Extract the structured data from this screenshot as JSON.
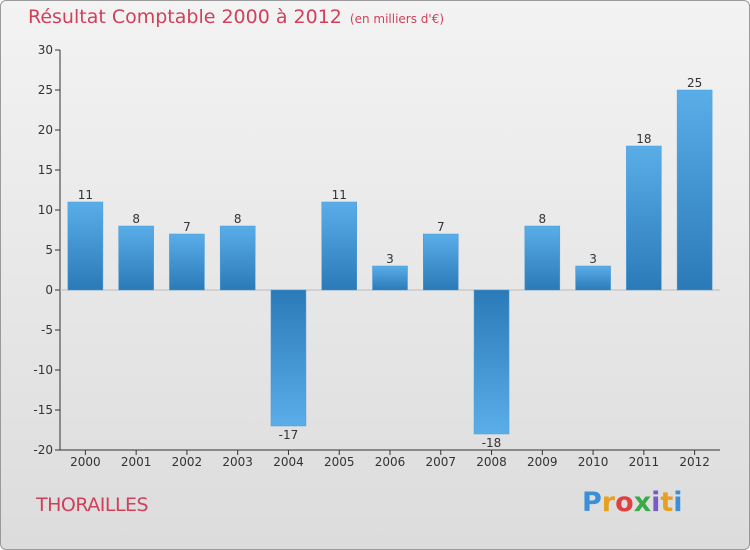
{
  "chart_data": {
    "type": "bar",
    "title": "Résultat Comptable 2000 à 2012",
    "subtitle": "(en milliers d'€)",
    "categories": [
      "2000",
      "2001",
      "2002",
      "2003",
      "2004",
      "2005",
      "2006",
      "2007",
      "2008",
      "2009",
      "2010",
      "2011",
      "2012"
    ],
    "values": [
      11,
      8,
      7,
      8,
      -17,
      11,
      3,
      7,
      -18,
      8,
      3,
      18,
      25
    ],
    "data_labels": [
      "11",
      "8",
      "7",
      "8",
      "-17",
      "11",
      "3",
      "7",
      "-18",
      "8",
      "3",
      "18",
      "25"
    ],
    "ylim": [
      -20,
      30
    ],
    "yticks": [
      -20,
      -15,
      -10,
      -5,
      0,
      5,
      10,
      15,
      20,
      25,
      30
    ],
    "grid": false,
    "xlabel": "",
    "ylabel": ""
  },
  "footer": {
    "location": "THORAILLES",
    "brand_letters": [
      "P",
      "r",
      "o",
      "x",
      "i",
      "t",
      "i"
    ],
    "brand_colors": [
      "#3a8fd8",
      "#e8a020",
      "#e04040",
      "#3aaa48",
      "#7a5ac8",
      "#e8a020",
      "#3a8fd8"
    ]
  },
  "colors": {
    "bar_light": "#5aaee8",
    "bar_dark": "#2a7ab8",
    "title": "#d0405a"
  }
}
